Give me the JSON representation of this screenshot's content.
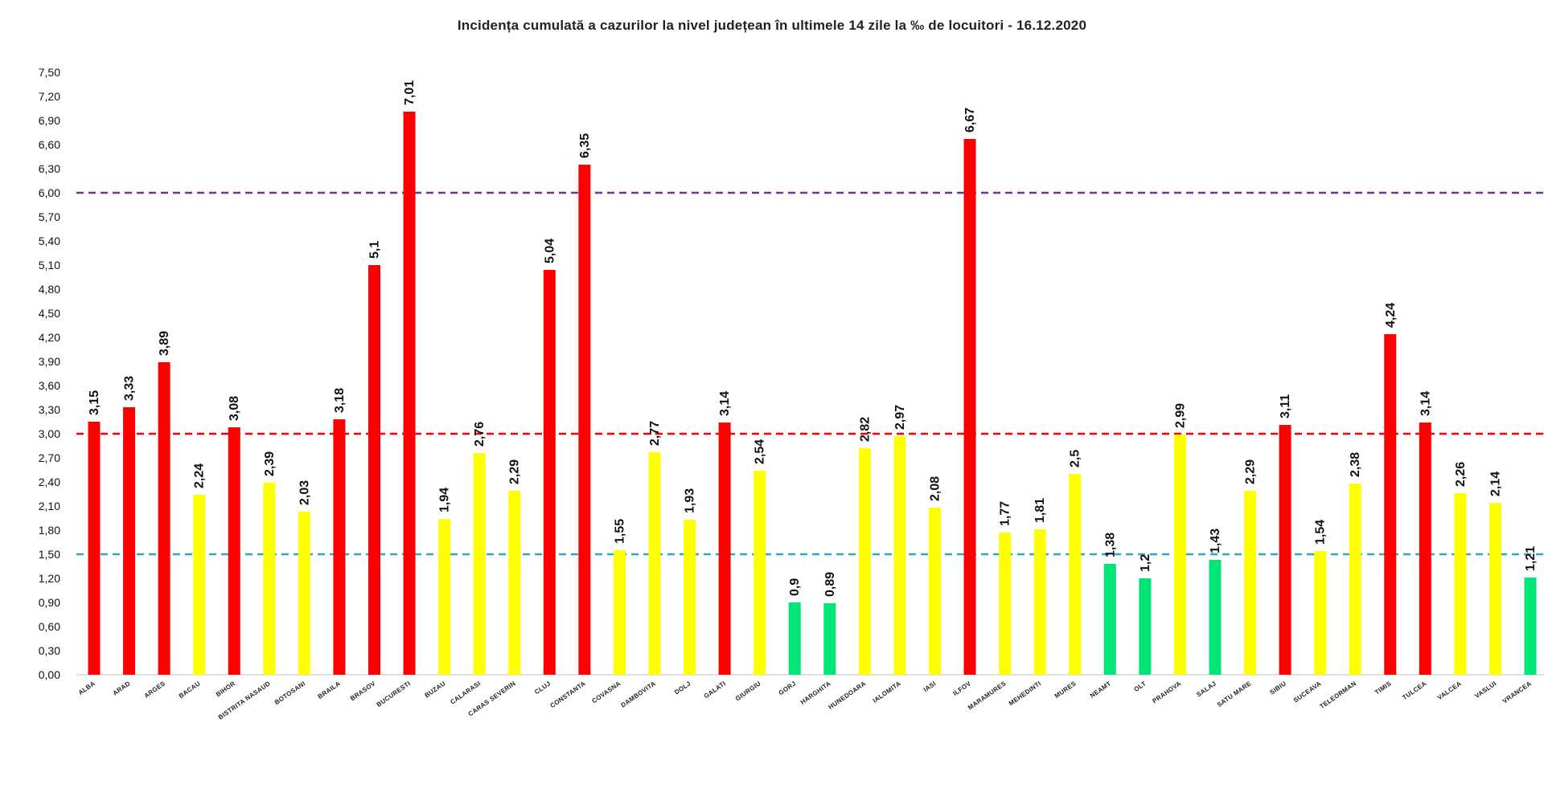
{
  "chart_data": {
    "type": "bar",
    "title": "Incidența cumulată a cazurilor la nivel județean în ultimele 14 zile   la ‰ de locuitori  - 16.12.2020",
    "ylim": [
      0,
      7.5
    ],
    "yticks": [
      "0,00",
      "0,30",
      "0,60",
      "0,90",
      "1,20",
      "1,50",
      "1,80",
      "2,10",
      "2,40",
      "2,70",
      "3,00",
      "3,30",
      "3,60",
      "3,90",
      "4,20",
      "4,50",
      "4,80",
      "5,10",
      "5,40",
      "5,70",
      "6,00",
      "6,30",
      "6,60",
      "6,90",
      "7,20",
      "7,50"
    ],
    "thresholds": [
      {
        "value": 6.0,
        "color": "#7030a0"
      },
      {
        "value": 3.0,
        "color": "#ff0000"
      },
      {
        "value": 1.5,
        "color": "#2aa7c9"
      }
    ],
    "colors": {
      "red": "#ff0000",
      "yellow": "#ffff00",
      "green": "#00e676"
    },
    "grid": false,
    "legend": "none",
    "categories": [
      "ALBA",
      "ARAD",
      "ARGES",
      "BACAU",
      "BIHOR",
      "BISTRITA NASAUD",
      "BOTOSANI",
      "BRAILA",
      "BRASOV",
      "BUCURESTI",
      "BUZAU",
      "CALARASI",
      "CARAS SEVERIN",
      "CLUJ",
      "CONSTANTA",
      "COVASNA",
      "DAMBOVITA",
      "DOLJ",
      "GALATI",
      "GIURGIU",
      "GORJ",
      "HARGHITA",
      "HUNEDOARA",
      "IALOMITA",
      "IASI",
      "ILFOV",
      "MARAMURES",
      "MEHEDINTI",
      "MURES",
      "NEAMT",
      "OLT",
      "PRAHOVA",
      "SALAJ",
      "SATU MARE",
      "SIBIU",
      "SUCEAVA",
      "TELEORMAN",
      "TIMIS",
      "TULCEA",
      "VALCEA",
      "VASLUI",
      "VRANCEA"
    ],
    "values": [
      3.15,
      3.33,
      3.89,
      2.24,
      3.08,
      2.39,
      2.03,
      3.18,
      5.1,
      7.01,
      1.94,
      2.76,
      2.29,
      5.04,
      6.35,
      1.55,
      2.77,
      1.93,
      3.14,
      2.54,
      0.9,
      0.89,
      2.82,
      2.97,
      2.08,
      6.67,
      1.77,
      1.81,
      2.5,
      1.38,
      1.2,
      2.99,
      1.43,
      2.29,
      3.11,
      1.54,
      2.38,
      4.24,
      3.14,
      2.26,
      2.14,
      1.21
    ],
    "value_labels": [
      "3,15",
      "3,33",
      "3,89",
      "2,24",
      "3,08",
      "2,39",
      "2,03",
      "3,18",
      "5,1",
      "7,01",
      "1,94",
      "2,76",
      "2,29",
      "5,04",
      "6,35",
      "1,55",
      "2,77",
      "1,93",
      "3,14",
      "2,54",
      "0,9",
      "0,89",
      "2,82",
      "2,97",
      "2,08",
      "6,67",
      "1,77",
      "1,81",
      "2,5",
      "1,38",
      "1,2",
      "2,99",
      "1,43",
      "2,29",
      "3,11",
      "1,54",
      "2,38",
      "4,24",
      "3,14",
      "2,26",
      "2,14",
      "1,21"
    ],
    "bar_colors": [
      "red",
      "red",
      "red",
      "yellow",
      "red",
      "yellow",
      "yellow",
      "red",
      "red",
      "red",
      "yellow",
      "yellow",
      "yellow",
      "red",
      "red",
      "yellow",
      "yellow",
      "yellow",
      "red",
      "yellow",
      "green",
      "green",
      "yellow",
      "yellow",
      "yellow",
      "red",
      "yellow",
      "yellow",
      "yellow",
      "green",
      "green",
      "yellow",
      "green",
      "yellow",
      "red",
      "yellow",
      "yellow",
      "red",
      "red",
      "yellow",
      "yellow",
      "green"
    ]
  }
}
